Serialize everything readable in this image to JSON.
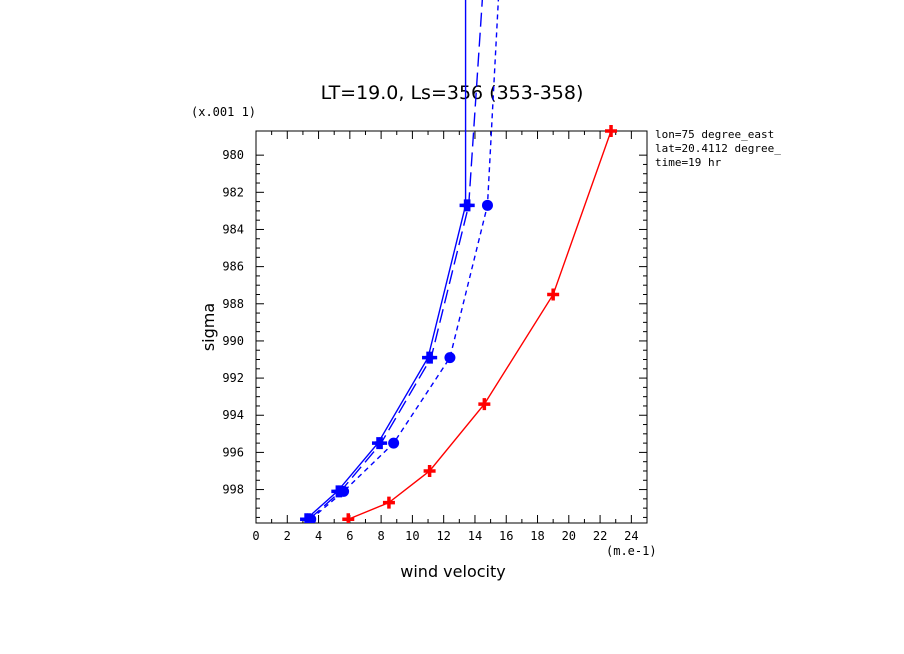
{
  "chart_data": {
    "type": "line",
    "title": "LT=19.0, Ls=356 (353-358)",
    "xlabel": "wind velocity",
    "xunit": "(m.e-1)",
    "ylabel": "sigma",
    "yunit": "(x.001 1)",
    "xlim": [
      0,
      25
    ],
    "ylim": [
      999.8,
      978.7
    ],
    "y_reversed": true,
    "x_ticks": [
      "0",
      "2",
      "4",
      "6",
      "8",
      "10",
      "12",
      "14",
      "16",
      "18",
      "20",
      "22",
      "24"
    ],
    "x_tick_values": [
      0,
      2,
      4,
      6,
      8,
      10,
      12,
      14,
      16,
      18,
      20,
      22,
      24
    ],
    "y_ticks": [
      "980",
      "982",
      "984",
      "986",
      "988",
      "990",
      "992",
      "994",
      "996",
      "998"
    ],
    "y_tick_values": [
      980,
      982,
      984,
      986,
      988,
      990,
      992,
      994,
      996,
      998
    ],
    "annotations": [
      "lon=75 degree_east",
      "lat=20.4112 degree_",
      "time=19 hr"
    ],
    "grid": false,
    "series": [
      {
        "color": "#0000ff",
        "dash": "solid",
        "marker": "cross",
        "points": [
          [
            3.2,
            999.6
          ],
          [
            5.2,
            998.1
          ],
          [
            7.8,
            995.5
          ],
          [
            11.0,
            990.9
          ],
          [
            13.4,
            982.7
          ],
          [
            13.4,
            970.0
          ]
        ]
      },
      {
        "color": "#0000ff",
        "dash": "long",
        "marker": "cross",
        "points": [
          [
            3.4,
            999.6
          ],
          [
            5.4,
            998.1
          ],
          [
            8.0,
            995.5
          ],
          [
            11.2,
            990.9
          ],
          [
            13.6,
            982.7
          ],
          [
            14.6,
            970.0
          ]
        ]
      },
      {
        "color": "#0000ff",
        "dash": "short",
        "marker": "circle",
        "points": [
          [
            3.5,
            999.6
          ],
          [
            5.6,
            998.1
          ],
          [
            8.8,
            995.5
          ],
          [
            12.4,
            990.9
          ],
          [
            14.8,
            982.7
          ],
          [
            15.6,
            970.0
          ]
        ]
      },
      {
        "color": "#ff0000",
        "dash": "solid",
        "marker": "cross",
        "points": [
          [
            5.9,
            999.6
          ],
          [
            8.5,
            998.7
          ],
          [
            11.1,
            997.0
          ],
          [
            14.6,
            993.4
          ],
          [
            19.0,
            987.5
          ],
          [
            22.7,
            978.7
          ]
        ]
      }
    ]
  }
}
